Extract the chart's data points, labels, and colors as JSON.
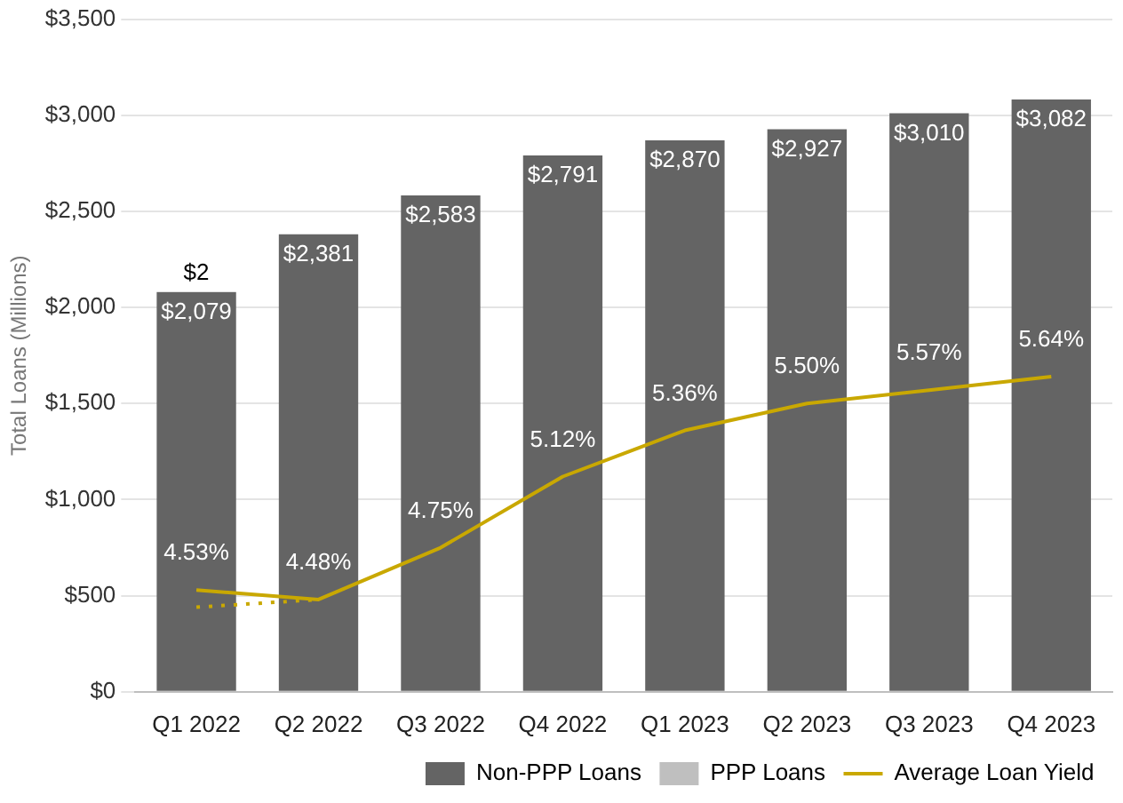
{
  "chart_data": {
    "type": "bar",
    "stacked": true,
    "ylabel": "Total Loans (Millions)",
    "categories": [
      "Q1 2022",
      "Q2 2022",
      "Q3 2022",
      "Q4 2022",
      "Q1 2023",
      "Q2 2023",
      "Q3 2023",
      "Q4 2023"
    ],
    "series": [
      {
        "name": "Non-PPP Loans",
        "color": "#646464",
        "values": [
          2079,
          2381,
          2583,
          2791,
          2870,
          2927,
          3010,
          3082
        ],
        "value_labels": [
          "$2,079",
          "$2,381",
          "$2,583",
          "$2,791",
          "$2,870",
          "$2,927",
          "$3,010",
          "$3,082"
        ]
      },
      {
        "name": "PPP Loans",
        "color": "#bfbfbf",
        "values": [
          2,
          null,
          null,
          null,
          null,
          null,
          null,
          null
        ],
        "value_labels": [
          "$2",
          null,
          null,
          null,
          null,
          null,
          null,
          null
        ]
      },
      {
        "name": "Average Loan Yield",
        "type": "line",
        "axis": "y2",
        "color": "#c9a800",
        "values": [
          4.53,
          4.48,
          4.75,
          5.12,
          5.36,
          5.5,
          5.57,
          5.64
        ],
        "value_labels": [
          "4.53%",
          "4.48%",
          "4.75%",
          "5.12%",
          "5.36%",
          "5.50%",
          "5.57%",
          "5.64%"
        ]
      },
      {
        "type": "line",
        "axis": "y2",
        "line_style": "dotted",
        "color": "#c9a800",
        "values": [
          4.44,
          4.48,
          null,
          null,
          null,
          null,
          null,
          null
        ]
      }
    ],
    "ylim": [
      0,
      3500
    ],
    "yticks": [
      {
        "value": 0,
        "label": "$0"
      },
      {
        "value": 500,
        "label": "$500"
      },
      {
        "value": 1000,
        "label": "$1,000"
      },
      {
        "value": 1500,
        "label": "$1,500"
      },
      {
        "value": 2000,
        "label": "$2,000"
      },
      {
        "value": 2500,
        "label": "$2,500"
      },
      {
        "value": 3000,
        "label": "$3,000"
      },
      {
        "value": 3500,
        "label": "$3,500"
      }
    ],
    "y2lim": [
      4,
      7.5
    ],
    "grid": "y",
    "legend": "bottom right",
    "marker": "none"
  }
}
